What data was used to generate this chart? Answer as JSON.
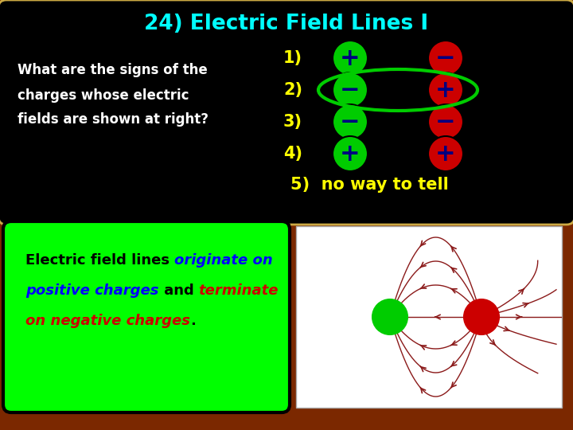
{
  "title": "24) Electric Field Lines I",
  "title_color": "#00FFFF",
  "panel_bg": "#000000",
  "brown_bg": "#7B2800",
  "panel_edge": "#CCAA44",
  "question_text": [
    "What are the signs of the",
    "charges whose electric",
    "fields are shown at right?"
  ],
  "question_color": "#FFFFFF",
  "options": [
    {
      "num": "1)",
      "left_sign": "+",
      "left_color": "#00CC00",
      "right_sign": "−",
      "right_color": "#CC0000",
      "circled": false
    },
    {
      "num": "2)",
      "left_sign": "−",
      "left_color": "#00CC00",
      "right_sign": "+",
      "right_color": "#CC0000",
      "circled": true
    },
    {
      "num": "3)",
      "left_sign": "−",
      "left_color": "#00CC00",
      "right_sign": "−",
      "right_color": "#CC0000",
      "circled": false
    },
    {
      "num": "4)",
      "left_sign": "+",
      "left_color": "#00CC00",
      "right_sign": "+",
      "right_color": "#CC0000",
      "circled": false
    }
  ],
  "option5": "5)  no way to tell",
  "option5_color": "#FFFF00",
  "num_color": "#FFFF00",
  "expl_bg": "#00FF00",
  "expl_edge": "#000000",
  "field_line_color": "#8B1A1A",
  "green_charge_color": "#00CC00",
  "red_charge_color": "#CC0000"
}
